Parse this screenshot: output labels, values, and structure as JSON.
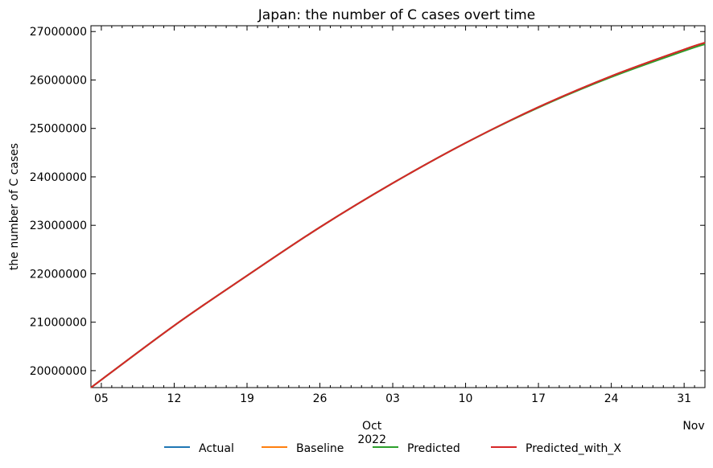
{
  "chart_data": {
    "type": "line",
    "title": "Japan: the number of C cases overt time",
    "ylabel": "the number of C cases",
    "xlabel": "",
    "x_start": "2022-09-04",
    "x_end": "2022-11-02",
    "ylim": [
      19650000,
      27120000
    ],
    "y_ticks": [
      {
        "value": 20000000,
        "label": "20000000"
      },
      {
        "value": 21000000,
        "label": "21000000"
      },
      {
        "value": 22000000,
        "label": "22000000"
      },
      {
        "value": 23000000,
        "label": "23000000"
      },
      {
        "value": 24000000,
        "label": "24000000"
      },
      {
        "value": 25000000,
        "label": "25000000"
      },
      {
        "value": 26000000,
        "label": "26000000"
      },
      {
        "value": 27000000,
        "label": "27000000"
      }
    ],
    "x_ticks": [
      {
        "date": "2022-09-05",
        "label": "05"
      },
      {
        "date": "2022-09-12",
        "label": "12"
      },
      {
        "date": "2022-09-19",
        "label": "19"
      },
      {
        "date": "2022-09-26",
        "label": "26"
      },
      {
        "date": "2022-10-03",
        "label": "03"
      },
      {
        "date": "2022-10-10",
        "label": "10"
      },
      {
        "date": "2022-10-17",
        "label": "17"
      },
      {
        "date": "2022-10-24",
        "label": "24"
      },
      {
        "date": "2022-10-31",
        "label": "31"
      }
    ],
    "month_labels": [
      {
        "date": "2022-10-01",
        "label": "Oct",
        "year": "2022"
      },
      {
        "date": "2022-11-01",
        "label": "Nov",
        "year": ""
      }
    ],
    "legend_position": "bottom-center",
    "series": [
      {
        "name": "Actual",
        "color": "#1f77b4",
        "x": [
          "2022-09-04",
          "2022-09-12",
          "2022-09-19",
          "2022-09-26",
          "2022-10-03",
          "2022-10-10",
          "2022-10-17",
          "2022-10-24",
          "2022-10-31",
          "2022-11-02"
        ],
        "values": [
          19650000,
          20930000,
          21960000,
          22960000,
          23870000,
          24700000,
          25440000,
          26080000,
          26630000,
          26770000
        ]
      },
      {
        "name": "Baseline",
        "color": "#ff7f0e",
        "x": [
          "2022-09-04",
          "2022-09-12",
          "2022-09-19",
          "2022-09-26",
          "2022-10-03",
          "2022-10-10",
          "2022-10-17",
          "2022-10-24",
          "2022-10-31",
          "2022-11-02"
        ],
        "values": [
          19650000,
          20930000,
          21960000,
          22960000,
          23870000,
          24700000,
          25440000,
          26080000,
          26630000,
          26770000
        ]
      },
      {
        "name": "Predicted",
        "color": "#2ca02c",
        "x": [
          "2022-09-04",
          "2022-09-12",
          "2022-09-19",
          "2022-09-26",
          "2022-10-03",
          "2022-10-10",
          "2022-10-17",
          "2022-10-24",
          "2022-10-31",
          "2022-11-02"
        ],
        "values": [
          19650000,
          20930000,
          21960000,
          22960000,
          23870000,
          24700000,
          25430000,
          26060000,
          26600000,
          26740000
        ]
      },
      {
        "name": "Predicted_with_X",
        "color": "#d62728",
        "x": [
          "2022-09-04",
          "2022-09-12",
          "2022-09-19",
          "2022-09-26",
          "2022-10-03",
          "2022-10-10",
          "2022-10-17",
          "2022-10-24",
          "2022-10-31",
          "2022-11-02"
        ],
        "values": [
          19650000,
          20930000,
          21960000,
          22960000,
          23870000,
          24700000,
          25440000,
          26080000,
          26630000,
          26770000
        ]
      }
    ]
  }
}
